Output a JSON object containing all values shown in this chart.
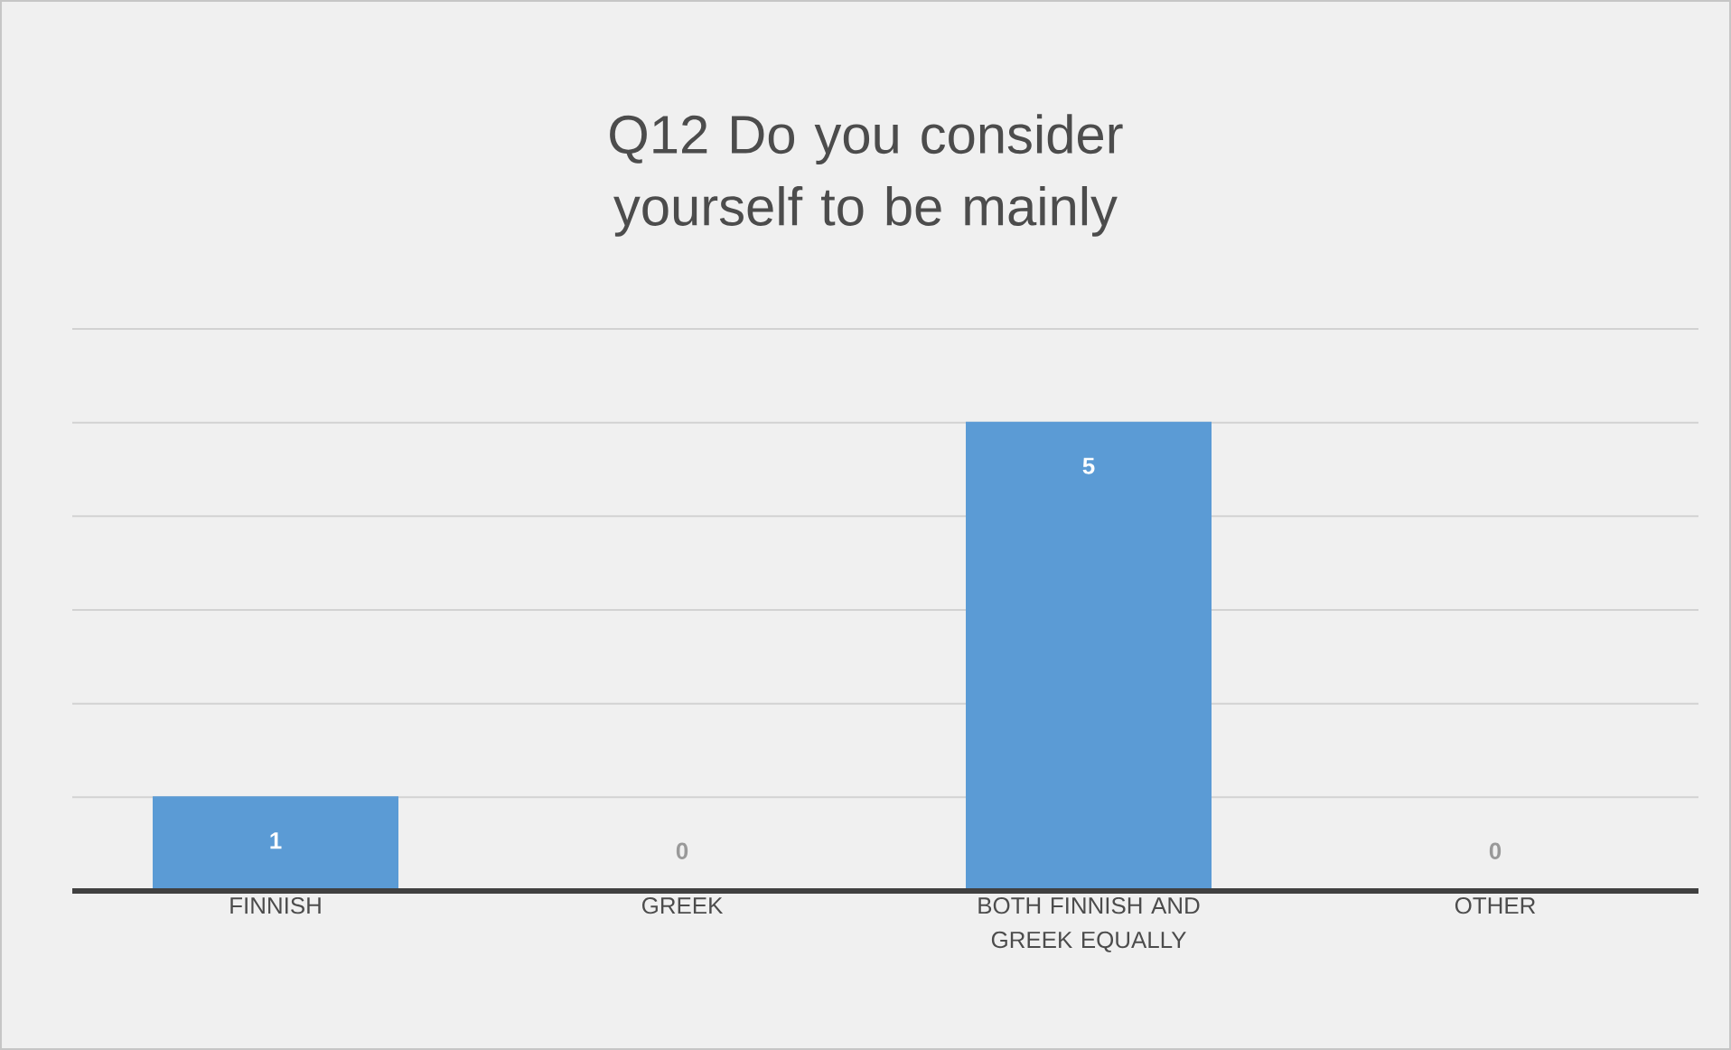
{
  "chart_data": {
    "type": "bar",
    "title": "Q12 Do you consider yourself to be mainly",
    "categories": [
      "FINNISH",
      "GREEK",
      "BOTH FINNISH AND GREEK EQUALLY",
      "OTHER"
    ],
    "values": [
      1,
      0,
      5,
      0
    ],
    "color": "#5b9bd5",
    "data_labels": true,
    "grid": "y",
    "tick_labels": "x",
    "ylim": [
      0,
      6
    ],
    "yticks": [
      {
        "value": 0,
        "label": null
      },
      {
        "value": 1,
        "label": null
      },
      {
        "value": 2,
        "label": null
      },
      {
        "value": 3,
        "label": null
      },
      {
        "value": 4,
        "label": null
      },
      {
        "value": 5,
        "label": null
      },
      {
        "value": 6,
        "label": null
      }
    ]
  }
}
